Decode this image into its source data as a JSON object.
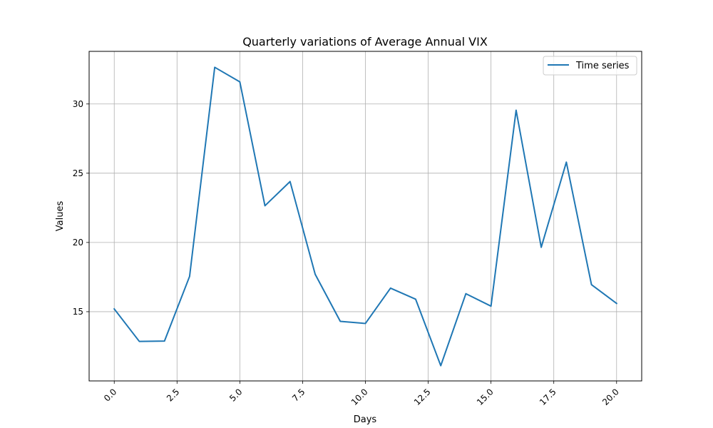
{
  "chart_data": {
    "type": "line",
    "title": "Quarterly variations of  Average Annual VIX",
    "xlabel": "Days",
    "ylabel": "Values",
    "xlim": [
      -1.0,
      21.0
    ],
    "ylim": [
      10.0,
      33.8
    ],
    "x_ticks": [
      0.0,
      2.5,
      5.0,
      7.5,
      10.0,
      12.5,
      15.0,
      17.5,
      20.0
    ],
    "x_tick_labels": [
      "0.0",
      "2.5",
      "5.0",
      "7.5",
      "10.0",
      "12.5",
      "15.0",
      "17.5",
      "20.0"
    ],
    "y_ticks": [
      15,
      20,
      25,
      30
    ],
    "y_tick_labels": [
      "15",
      "20",
      "25",
      "30"
    ],
    "x_tick_rotation_deg": 45,
    "grid": true,
    "legend_position": "top-right",
    "series": [
      {
        "name": "Time series",
        "color": "#1f77b4",
        "x": [
          0,
          1,
          2,
          3,
          4,
          5,
          6,
          7,
          8,
          9,
          10,
          11,
          12,
          13,
          14,
          15,
          16,
          17,
          18,
          19,
          20
        ],
        "values": [
          15.2,
          12.85,
          12.88,
          17.55,
          32.65,
          31.6,
          22.65,
          24.4,
          17.7,
          14.3,
          14.15,
          16.7,
          15.9,
          11.1,
          16.3,
          15.4,
          29.55,
          19.65,
          25.8,
          16.95,
          15.6
        ]
      }
    ]
  }
}
